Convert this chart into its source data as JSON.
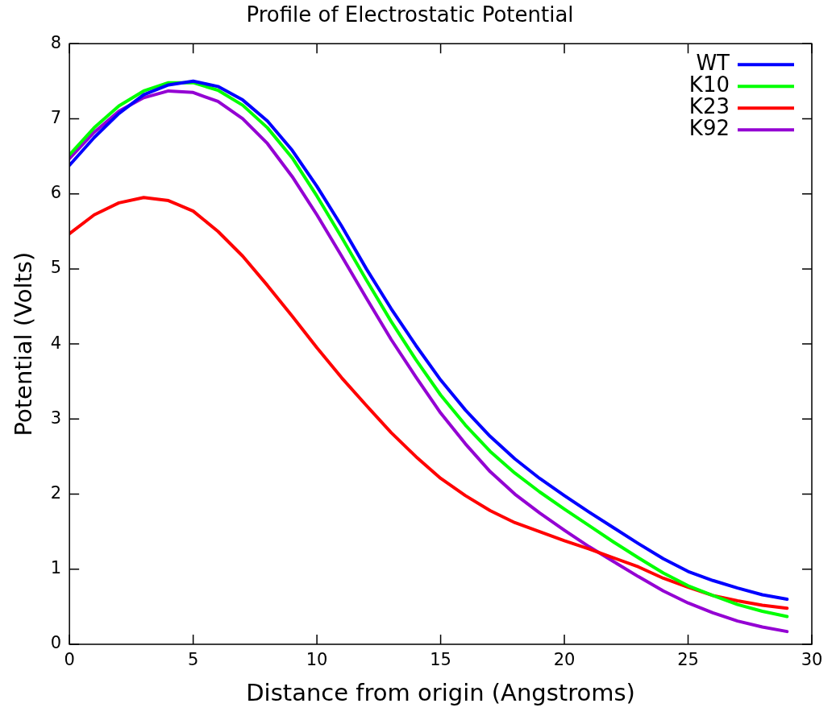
{
  "chart_data": {
    "type": "line",
    "title": "Profile of Electrostatic Potential",
    "xlabel": "Distance from origin (Angstroms)",
    "ylabel": "Potential (Volts)",
    "x": [
      0,
      1,
      2,
      3,
      4,
      5,
      6,
      7,
      8,
      9,
      10,
      11,
      12,
      13,
      14,
      15,
      16,
      17,
      18,
      19,
      20,
      21,
      22,
      23,
      24,
      25,
      26,
      27,
      28,
      29
    ],
    "series": [
      {
        "name": "WT",
        "color": "#0000ff",
        "values": [
          6.38,
          6.75,
          7.07,
          7.32,
          7.45,
          7.5,
          7.43,
          7.25,
          6.97,
          6.58,
          6.1,
          5.57,
          5.0,
          4.47,
          3.98,
          3.52,
          3.12,
          2.77,
          2.47,
          2.21,
          1.98,
          1.76,
          1.55,
          1.34,
          1.14,
          0.97,
          0.85,
          0.75,
          0.66,
          0.6
        ]
      },
      {
        "name": "K10",
        "color": "#00ff00",
        "values": [
          6.52,
          6.88,
          7.17,
          7.37,
          7.48,
          7.48,
          7.38,
          7.18,
          6.88,
          6.48,
          5.97,
          5.42,
          4.85,
          4.3,
          3.79,
          3.32,
          2.92,
          2.57,
          2.28,
          2.03,
          1.8,
          1.58,
          1.36,
          1.15,
          0.95,
          0.78,
          0.65,
          0.53,
          0.44,
          0.37
        ]
      },
      {
        "name": "K23",
        "color": "#ff0000",
        "values": [
          5.47,
          5.72,
          5.88,
          5.95,
          5.91,
          5.77,
          5.5,
          5.17,
          4.78,
          4.37,
          3.95,
          3.55,
          3.18,
          2.82,
          2.5,
          2.21,
          1.98,
          1.78,
          1.62,
          1.5,
          1.38,
          1.27,
          1.15,
          1.03,
          0.88,
          0.76,
          0.65,
          0.58,
          0.52,
          0.48
        ]
      },
      {
        "name": "K92",
        "color": "#9400d3",
        "values": [
          6.47,
          6.82,
          7.1,
          7.28,
          7.37,
          7.35,
          7.23,
          7.0,
          6.67,
          6.23,
          5.72,
          5.17,
          4.61,
          4.06,
          3.56,
          3.08,
          2.67,
          2.3,
          2.0,
          1.75,
          1.52,
          1.3,
          1.1,
          0.9,
          0.71,
          0.55,
          0.42,
          0.31,
          0.23,
          0.17
        ]
      }
    ],
    "xlim": [
      0,
      30
    ],
    "xticks": [
      0,
      5,
      10,
      15,
      20,
      25,
      30
    ],
    "ylim": [
      0,
      8
    ],
    "yticks": [
      0,
      1,
      2,
      3,
      4,
      5,
      6,
      7,
      8
    ],
    "grid": false,
    "legend": "top right",
    "marker": "none",
    "line_style": "solid"
  }
}
